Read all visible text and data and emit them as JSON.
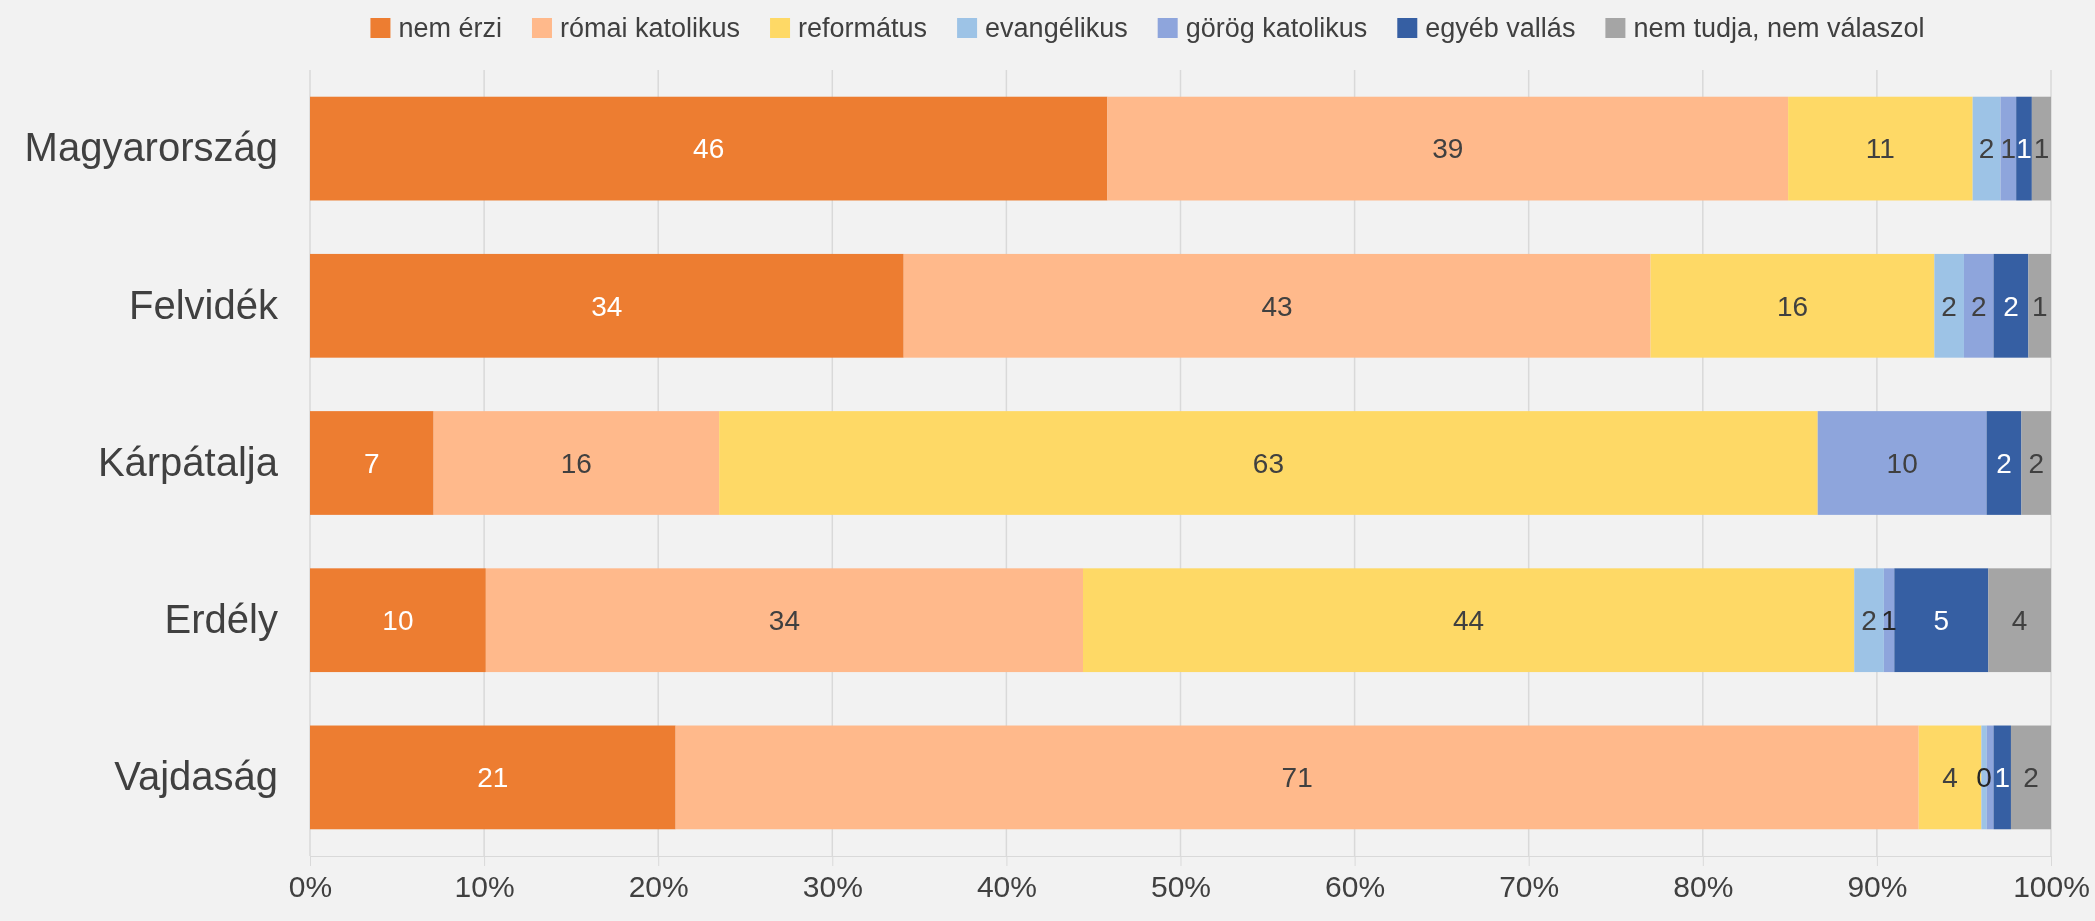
{
  "chart_data": {
    "type": "bar",
    "orientation": "horizontal",
    "stacked": true,
    "categories": [
      "Magyarország",
      "Felvidék",
      "Kárpátalja",
      "Erdély",
      "Vajdaság"
    ],
    "series": [
      {
        "name": "nem érzi",
        "color": "#ed7d31",
        "values": [
          45.8,
          34.1,
          7.1,
          10.1,
          21.0
        ],
        "value_labels": [
          "46",
          "34",
          "7",
          "10",
          "21"
        ]
      },
      {
        "name": "római katolikus",
        "color": "#ffb98b",
        "values": [
          39.1,
          42.9,
          16.4,
          34.3,
          71.4
        ],
        "value_labels": [
          "39",
          "43",
          "16",
          "34",
          "71"
        ]
      },
      {
        "name": "református",
        "color": "#fed966",
        "values": [
          10.6,
          16.3,
          63.1,
          44.3,
          3.6
        ],
        "value_labels": [
          "11",
          "16",
          "63",
          "44",
          "4"
        ]
      },
      {
        "name": "evangélikus",
        "color": "#9dc3e6",
        "values": [
          1.6,
          1.7,
          null,
          1.7,
          0.3
        ],
        "value_labels": [
          "2",
          "2",
          null,
          "2",
          "0"
        ]
      },
      {
        "name": "görög katolikus",
        "color": "#8ea5dc",
        "values": [
          0.9,
          1.7,
          9.7,
          0.6,
          0.4
        ],
        "value_labels": [
          "1",
          "2",
          "10",
          "1",
          null
        ]
      },
      {
        "name": "egyéb vallás",
        "color": "#365fa3",
        "values": [
          0.9,
          2.0,
          2.0,
          5.4,
          1.0
        ],
        "value_labels": [
          "1",
          "2",
          "2",
          "5",
          "1"
        ]
      },
      {
        "name": "nem tudja, nem válaszol",
        "color": "#a5a5a5",
        "values": [
          1.1,
          1.3,
          1.7,
          3.6,
          2.3
        ],
        "value_labels": [
          "1",
          "1",
          "2",
          "4",
          "2"
        ]
      }
    ],
    "xlim": [
      0,
      100
    ],
    "xticks": [
      {
        "value": 0,
        "label": "0%"
      },
      {
        "value": 10,
        "label": "10%"
      },
      {
        "value": 20,
        "label": "20%"
      },
      {
        "value": 30,
        "label": "30%"
      },
      {
        "value": 40,
        "label": "40%"
      },
      {
        "value": 50,
        "label": "50%"
      },
      {
        "value": 60,
        "label": "60%"
      },
      {
        "value": 70,
        "label": "70%"
      },
      {
        "value": 80,
        "label": "80%"
      },
      {
        "value": 90,
        "label": "90%"
      },
      {
        "value": 100,
        "label": "100%"
      }
    ],
    "grid": "x",
    "legend": "top"
  }
}
